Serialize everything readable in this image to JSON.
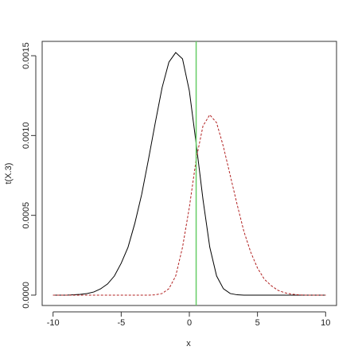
{
  "chart_data": {
    "type": "line",
    "xlabel": "x",
    "ylabel": "t(X.3)",
    "x": [
      -10,
      -9.5,
      -9,
      -8.5,
      -8,
      -7.5,
      -7,
      -6.5,
      -6,
      -5.5,
      -5,
      -4.5,
      -4,
      -3.5,
      -3,
      -2.5,
      -2,
      -1.5,
      -1,
      -0.5,
      0,
      0.5,
      1,
      1.5,
      2,
      2.5,
      3,
      3.5,
      4,
      4.5,
      5,
      5.5,
      6,
      6.5,
      7,
      7.5,
      8,
      8.5,
      9,
      9.5,
      10
    ],
    "series": [
      {
        "color": "#000000",
        "dash": false,
        "values": [
          0,
          0,
          0,
          2e-06,
          5e-06,
          1e-05,
          2e-05,
          4e-05,
          7e-05,
          0.00012,
          0.0002,
          0.0003,
          0.00045,
          0.00063,
          0.00085,
          0.00108,
          0.0013,
          0.00146,
          0.00152,
          0.00148,
          0.00128,
          0.00095,
          0.0006,
          0.0003,
          0.00012,
          4e-05,
          1e-05,
          2e-06,
          0,
          0,
          0,
          0,
          0,
          0,
          0,
          0,
          0,
          0,
          0,
          0,
          0
        ]
      },
      {
        "color": "#b22222",
        "dash": true,
        "values": [
          0,
          0,
          0,
          0,
          0,
          0,
          0,
          0,
          0,
          0,
          0,
          0,
          0,
          0,
          0,
          2e-06,
          1e-05,
          4e-05,
          0.00012,
          0.0003,
          0.00055,
          0.00085,
          0.00106,
          0.00113,
          0.00108,
          0.00093,
          0.00075,
          0.00057,
          0.0004,
          0.00027,
          0.00017,
          0.0001,
          6e-05,
          3e-05,
          1.5e-05,
          6e-06,
          2e-06,
          0,
          0,
          0,
          0
        ]
      }
    ],
    "vline": {
      "x": 0.5,
      "color": "#66cc66"
    },
    "xlim": [
      -10.8,
      10.8
    ],
    "ylim": [
      -6.5e-05,
      0.00159
    ],
    "xticks": [
      -10,
      -5,
      0,
      5,
      10
    ],
    "yticks": [
      {
        "value": 0,
        "label": "0.0000"
      },
      {
        "value": 0.0005,
        "label": "0.0005"
      },
      {
        "value": 0.001,
        "label": "0.0010"
      },
      {
        "value": 0.0015,
        "label": "0.0015"
      }
    ]
  }
}
